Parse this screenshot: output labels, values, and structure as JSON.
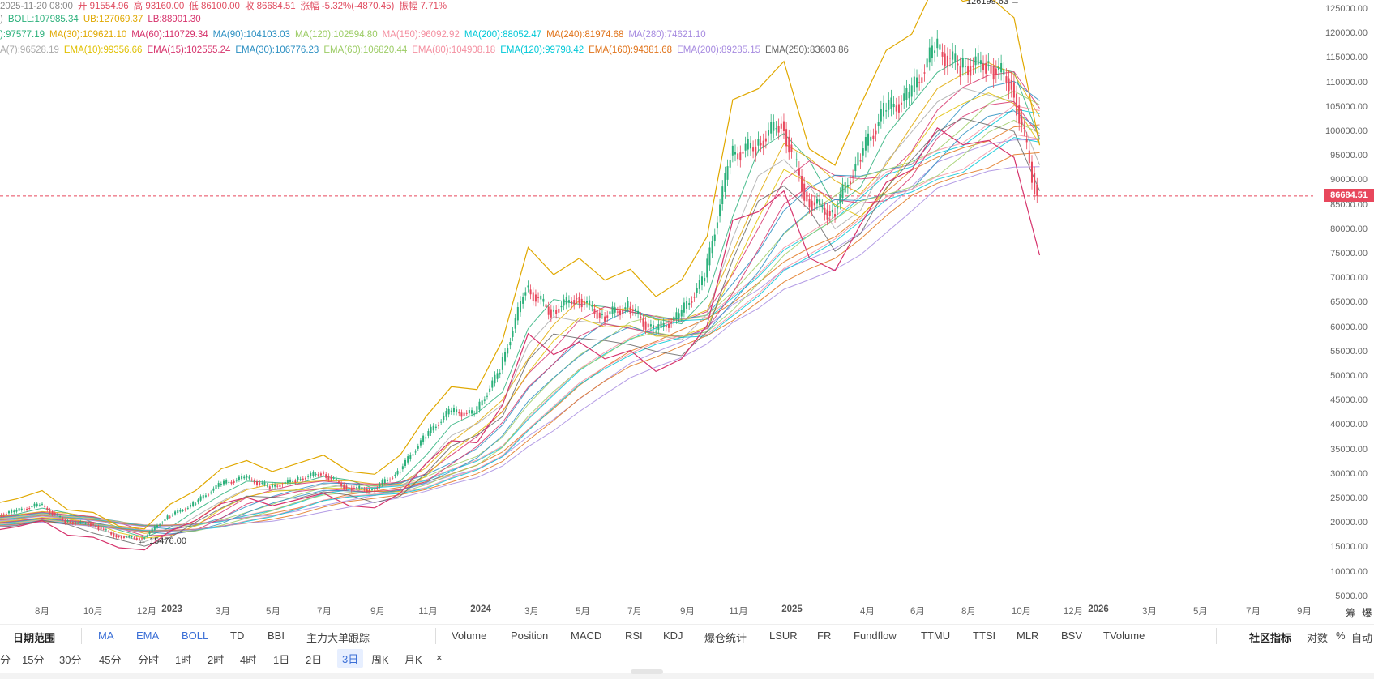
{
  "header": {
    "ohlc": [
      {
        "text": "2025-11-20 08:00",
        "cls": "gray"
      },
      {
        "text": "开 91554.96",
        "cls": "red"
      },
      {
        "text": "高 93160.00",
        "cls": "red"
      },
      {
        "text": "低 86100.00",
        "cls": "red"
      },
      {
        "text": "收 86684.51",
        "cls": "red"
      },
      {
        "text": "涨幅 -5.32%(-4870.45)",
        "cls": "red"
      },
      {
        "text": "振幅 7.71%",
        "cls": "red"
      }
    ],
    "boll": [
      {
        "text": ")",
        "color": "#888888"
      },
      {
        "text": "BOLL:107985.34",
        "color": "#2ab07a"
      },
      {
        "text": "UB:127069.37",
        "color": "#e0a800"
      },
      {
        "text": "LB:88901.30",
        "color": "#d6336c"
      }
    ],
    "ma": [
      {
        "text": "):97577.19",
        "color": "#2ab07a"
      },
      {
        "text": "MA(30):109621.10",
        "color": "#e0a800"
      },
      {
        "text": "MA(60):110729.34",
        "color": "#d6336c"
      },
      {
        "text": "MA(90):104103.03",
        "color": "#2b8fc2"
      },
      {
        "text": "MA(120):102594.80",
        "color": "#9ccc65"
      },
      {
        "text": "MA(150):96092.92",
        "color": "#f48fa0"
      },
      {
        "text": "MA(200):88052.47",
        "color": "#00c8d7"
      },
      {
        "text": "MA(240):81974.68",
        "color": "#e0731a"
      },
      {
        "text": "MA(280):74621.10",
        "color": "#a78be0"
      }
    ],
    "ema": [
      {
        "text": "A(7):96528.19",
        "color": "#aaaaaa"
      },
      {
        "text": "EMA(10):99356.66",
        "color": "#e0c000"
      },
      {
        "text": "EMA(15):102555.24",
        "color": "#d6336c"
      },
      {
        "text": "EMA(30):106776.23",
        "color": "#2b8fc2"
      },
      {
        "text": "EMA(60):106820.44",
        "color": "#9ccc65"
      },
      {
        "text": "EMA(80):104908.18",
        "color": "#f48fa0"
      },
      {
        "text": "EMA(120):99798.42",
        "color": "#00c8d7"
      },
      {
        "text": "EMA(160):94381.68",
        "color": "#e0731a"
      },
      {
        "text": "EMA(200):89285.15",
        "color": "#a78be0"
      },
      {
        "text": "EMA(250):83603.86",
        "color": "#666666"
      }
    ]
  },
  "chart_data": {
    "type": "line",
    "title": "",
    "ylim": [
      5000,
      125000
    ],
    "y_ticks": [
      "125000.00",
      "120000.00",
      "115000.00",
      "110000.00",
      "105000.00",
      "100000.00",
      "95000.00",
      "90000.00",
      "85000.00",
      "80000.00",
      "75000.00",
      "70000.00",
      "65000.00",
      "60000.00",
      "55000.00",
      "50000.00",
      "45000.00",
      "40000.00",
      "35000.00",
      "30000.00",
      "25000.00",
      "20000.00",
      "15000.00",
      "10000.00",
      "5000.00"
    ],
    "x_ticks": [
      {
        "label": "8月",
        "bold": false
      },
      {
        "label": "10月",
        "bold": false
      },
      {
        "label": "12月",
        "bold": false
      },
      {
        "label": "2023",
        "bold": true
      },
      {
        "label": "3月",
        "bold": false
      },
      {
        "label": "5月",
        "bold": false
      },
      {
        "label": "7月",
        "bold": false
      },
      {
        "label": "9月",
        "bold": false
      },
      {
        "label": "11月",
        "bold": false
      },
      {
        "label": "2024",
        "bold": true
      },
      {
        "label": "3月",
        "bold": false
      },
      {
        "label": "5月",
        "bold": false
      },
      {
        "label": "7月",
        "bold": false
      },
      {
        "label": "9月",
        "bold": false
      },
      {
        "label": "11月",
        "bold": false
      },
      {
        "label": "2025",
        "bold": true
      },
      {
        "label": "4月",
        "bold": false
      },
      {
        "label": "6月",
        "bold": false
      },
      {
        "label": "8月",
        "bold": false
      },
      {
        "label": "10月",
        "bold": false
      },
      {
        "label": "12月",
        "bold": false
      },
      {
        "label": "2026",
        "bold": true
      },
      {
        "label": "3月",
        "bold": false
      },
      {
        "label": "5月",
        "bold": false
      },
      {
        "label": "7月",
        "bold": false
      },
      {
        "label": "9月",
        "bold": false
      }
    ],
    "price_series": [
      {
        "x": "2022-06",
        "y": 21000
      },
      {
        "x": "2022-07",
        "y": 22000
      },
      {
        "x": "2022-08",
        "y": 23500
      },
      {
        "x": "2022-09",
        "y": 20000
      },
      {
        "x": "2022-10",
        "y": 19500
      },
      {
        "x": "2022-11",
        "y": 17000
      },
      {
        "x": "2022-12",
        "y": 16500
      },
      {
        "x": "2023-01",
        "y": 21000
      },
      {
        "x": "2023-02",
        "y": 23500
      },
      {
        "x": "2023-03",
        "y": 27500
      },
      {
        "x": "2023-04",
        "y": 29000
      },
      {
        "x": "2023-05",
        "y": 27000
      },
      {
        "x": "2023-06",
        "y": 28500
      },
      {
        "x": "2023-07",
        "y": 30000
      },
      {
        "x": "2023-08",
        "y": 27000
      },
      {
        "x": "2023-09",
        "y": 26500
      },
      {
        "x": "2023-10",
        "y": 30000
      },
      {
        "x": "2023-11",
        "y": 37000
      },
      {
        "x": "2023-12",
        "y": 42500
      },
      {
        "x": "2024-01",
        "y": 42000
      },
      {
        "x": "2024-02",
        "y": 51000
      },
      {
        "x": "2024-03",
        "y": 68000
      },
      {
        "x": "2024-04",
        "y": 63000
      },
      {
        "x": "2024-05",
        "y": 66000
      },
      {
        "x": "2024-06",
        "y": 62000
      },
      {
        "x": "2024-07",
        "y": 64000
      },
      {
        "x": "2024-08",
        "y": 59000
      },
      {
        "x": "2024-09",
        "y": 62000
      },
      {
        "x": "2024-10",
        "y": 70000
      },
      {
        "x": "2024-11",
        "y": 95000
      },
      {
        "x": "2024-12",
        "y": 97000
      },
      {
        "x": "2025-01",
        "y": 102000
      },
      {
        "x": "2025-02",
        "y": 86000
      },
      {
        "x": "2025-03",
        "y": 83000
      },
      {
        "x": "2025-04",
        "y": 94000
      },
      {
        "x": "2025-05",
        "y": 104000
      },
      {
        "x": "2025-06",
        "y": 107000
      },
      {
        "x": "2025-07",
        "y": 117000
      },
      {
        "x": "2025-08",
        "y": 113000
      },
      {
        "x": "2025-09",
        "y": 114000
      },
      {
        "x": "2025-10",
        "y": 110000
      },
      {
        "x": "2025-11",
        "y": 86684.51
      }
    ],
    "current_price": "86684.51",
    "annotations": {
      "high": "126199.63",
      "low": "15476.00"
    }
  },
  "toolbar1": {
    "items": [
      {
        "label": "日期范围",
        "cls": "bold"
      },
      {
        "label": "MA",
        "cls": "blue"
      },
      {
        "label": "EMA",
        "cls": "blue"
      },
      {
        "label": "BOLL",
        "cls": "blue"
      },
      {
        "label": "TD",
        "cls": ""
      },
      {
        "label": "BBI",
        "cls": ""
      },
      {
        "label": "主力大单跟踪",
        "cls": ""
      },
      {
        "label": "Volume",
        "cls": ""
      },
      {
        "label": "Position",
        "cls": ""
      },
      {
        "label": "MACD",
        "cls": ""
      },
      {
        "label": "RSI",
        "cls": ""
      },
      {
        "label": "KDJ",
        "cls": ""
      },
      {
        "label": "爆仓统计",
        "cls": ""
      },
      {
        "label": "LSUR",
        "cls": ""
      },
      {
        "label": "FR",
        "cls": ""
      },
      {
        "label": "Fundflow",
        "cls": ""
      },
      {
        "label": "TTMU",
        "cls": ""
      },
      {
        "label": "TTSI",
        "cls": ""
      },
      {
        "label": "MLR",
        "cls": ""
      },
      {
        "label": "BSV",
        "cls": ""
      },
      {
        "label": "TVolume",
        "cls": ""
      },
      {
        "label": "社区指标",
        "cls": "bold"
      },
      {
        "label": "对数",
        "cls": ""
      },
      {
        "label": "%",
        "cls": ""
      },
      {
        "label": "自动",
        "cls": ""
      }
    ]
  },
  "toolbar2": {
    "items": [
      {
        "label": "分",
        "cls": ""
      },
      {
        "label": "15分",
        "cls": ""
      },
      {
        "label": "30分",
        "cls": ""
      },
      {
        "label": "45分",
        "cls": ""
      },
      {
        "label": "分时",
        "cls": ""
      },
      {
        "label": "1时",
        "cls": ""
      },
      {
        "label": "2时",
        "cls": ""
      },
      {
        "label": "4时",
        "cls": ""
      },
      {
        "label": "1日",
        "cls": ""
      },
      {
        "label": "2日",
        "cls": ""
      },
      {
        "label": "3日",
        "cls": "active"
      },
      {
        "label": "周K",
        "cls": ""
      },
      {
        "label": "月K",
        "cls": ""
      },
      {
        "label": "×",
        "cls": ""
      }
    ]
  },
  "right_corner": {
    "label1": "筹",
    "label2": "爆"
  }
}
